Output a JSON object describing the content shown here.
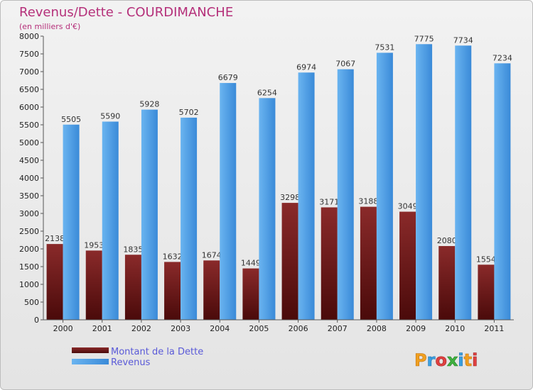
{
  "chart_data": {
    "type": "bar",
    "title": "Revenus/Dette - COURDIMANCHE",
    "subtitle": "(en milliers d'€)",
    "categories": [
      "2000",
      "2001",
      "2002",
      "2003",
      "2004",
      "2005",
      "2006",
      "2007",
      "2008",
      "2009",
      "2010",
      "2011"
    ],
    "series": [
      {
        "name": "Montant de la Dette",
        "color": "#7a1e1e",
        "values": [
          2138,
          1953,
          1835,
          1632,
          1674,
          1449,
          3298,
          3171,
          3188,
          3049,
          2080,
          1554
        ]
      },
      {
        "name": "Revenus",
        "color": "#4d9fe3",
        "values": [
          5505,
          5590,
          5928,
          5702,
          6679,
          6254,
          6974,
          7067,
          7531,
          7775,
          7734,
          7234
        ]
      }
    ],
    "ylim": [
      0,
      8000
    ],
    "ytick_step": 500,
    "grid": false,
    "legend_position": "bottom-left"
  },
  "logo": {
    "text": "Proxiti"
  }
}
